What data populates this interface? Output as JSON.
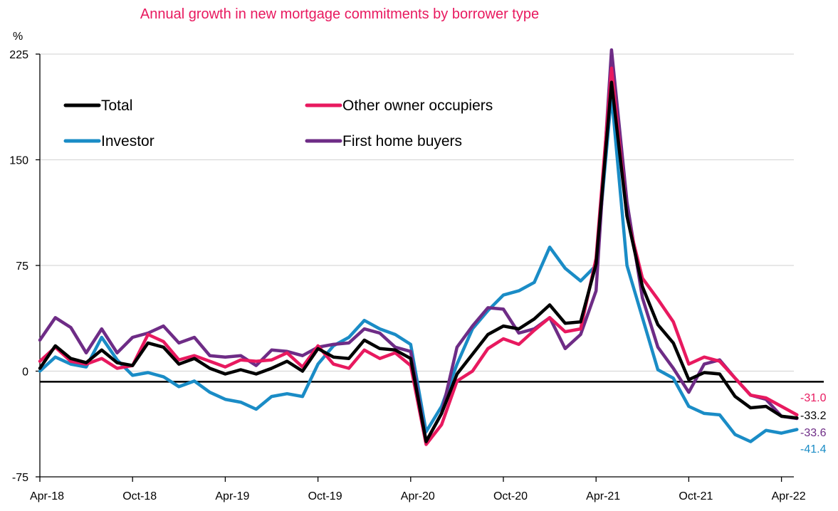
{
  "chart_data": {
    "type": "line",
    "title": "Annual growth in new mortgage commitments by borrower type",
    "ylabel": "%",
    "ylim": [
      -75,
      225
    ],
    "yticks": [
      225,
      150,
      75,
      0,
      -75
    ],
    "x_start": "Apr-18",
    "x_tick_labels": [
      "Apr-18",
      "Oct-18",
      "Apr-19",
      "Oct-19",
      "Apr-20",
      "Oct-20",
      "Apr-21",
      "Oct-21",
      "Apr-22"
    ],
    "reference_line": -7.5,
    "grid": true,
    "legend_position": "top-left",
    "colors": {
      "total": "#000000",
      "other_owner_occupiers": "#E8195F",
      "investor": "#1A8CC6",
      "first_home_buyers": "#6E2C86",
      "grid": "#d9d9d9",
      "title": "#E8195F"
    },
    "series": [
      {
        "key": "investor",
        "name": "Investor",
        "end_label": "-41.4",
        "values": [
          0,
          10,
          5,
          3,
          24,
          8,
          -3,
          -1,
          -4,
          -11,
          -7,
          -15,
          -20,
          -22,
          -27,
          -18,
          -16,
          -18,
          5,
          18,
          24,
          36,
          30,
          26,
          19,
          -43,
          -25,
          5,
          30,
          43,
          54,
          57,
          63,
          88,
          73,
          64,
          75,
          196,
          75,
          38,
          1,
          -5,
          -25,
          -30,
          -31,
          -45,
          -50,
          -42,
          -44,
          -41.4
        ]
      },
      {
        "key": "first_home_buyers",
        "name": "First home buyers",
        "end_label": "-33.6",
        "values": [
          22,
          38,
          31,
          13,
          30,
          13,
          24,
          27,
          32,
          20,
          24,
          11,
          10,
          11,
          4,
          15,
          14,
          11,
          17,
          19,
          20,
          30,
          27,
          17,
          14,
          -50,
          -30,
          17,
          32,
          45,
          44,
          27,
          30,
          38,
          16,
          26,
          57,
          228,
          120,
          52,
          17,
          2,
          -15,
          5,
          8,
          -5,
          -17,
          -20,
          -32,
          -33.6
        ]
      },
      {
        "key": "other_owner_occupiers",
        "name": "Other owner occupiers",
        "end_label": "-31.0",
        "values": [
          7,
          17,
          7,
          5,
          9,
          2,
          4,
          26,
          21,
          8,
          11,
          7,
          3,
          8,
          7,
          8,
          13,
          3,
          18,
          5,
          2,
          15,
          9,
          13,
          4,
          -52,
          -38,
          -7,
          0,
          16,
          23,
          19,
          29,
          38,
          28,
          30,
          80,
          215,
          110,
          66,
          51,
          35,
          5,
          10,
          7,
          -5,
          -17,
          -19,
          -25,
          -31.0
        ]
      },
      {
        "key": "total",
        "name": "Total",
        "end_label": "-33.2",
        "values": [
          2,
          18,
          9,
          6,
          15,
          6,
          4,
          20,
          17,
          5,
          9,
          2,
          -2,
          1,
          -2,
          2,
          7,
          0,
          16,
          10,
          9,
          22,
          16,
          15,
          9,
          -50,
          -30,
          -2,
          12,
          26,
          32,
          30,
          37,
          47,
          34,
          35,
          76,
          205,
          110,
          60,
          33,
          20,
          -6,
          -1,
          -2,
          -18,
          -26,
          -25,
          -32,
          -33.2
        ]
      }
    ],
    "legend": [
      {
        "key": "total",
        "label": "Total"
      },
      {
        "key": "other_owner_occupiers",
        "label": "Other owner occupiers"
      },
      {
        "key": "investor",
        "label": "Investor"
      },
      {
        "key": "first_home_buyers",
        "label": "First home buyers"
      }
    ]
  }
}
